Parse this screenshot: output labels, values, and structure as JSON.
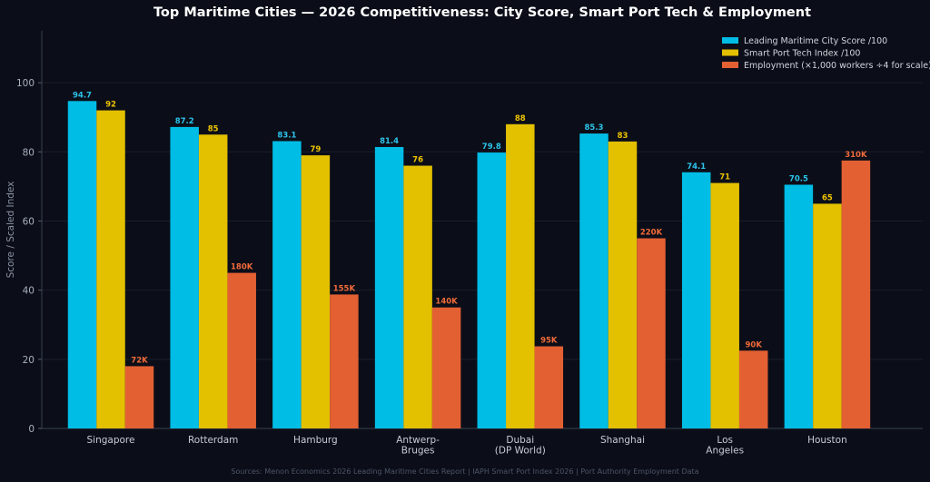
{
  "chart_data": {
    "type": "bar",
    "title": "Top Maritime Cities — 2026 Competitiveness: City Score, Smart Port Tech & Employment",
    "ylabel": "Score / Scaled Index",
    "xlabel": "",
    "ylim": [
      0,
      115
    ],
    "yticks": [
      0,
      20,
      40,
      60,
      80,
      100
    ],
    "grid": true,
    "legend_position": "top-right",
    "categories": [
      [
        "Singapore"
      ],
      [
        "Rotterdam"
      ],
      [
        "Hamburg"
      ],
      [
        "Antwerp-",
        "Bruges"
      ],
      [
        "Dubai",
        "(DP World)"
      ],
      [
        "Shanghai"
      ],
      [
        "Los",
        "Angeles"
      ],
      [
        "Houston"
      ]
    ],
    "series": [
      {
        "name": "Leading Maritime City Score /100",
        "color": "#00bde6",
        "label_color": "#2cc3ea",
        "values": [
          94.7,
          87.2,
          83.1,
          81.4,
          79.8,
          85.3,
          74.1,
          70.5
        ],
        "labels": [
          "94.7",
          "87.2",
          "83.1",
          "81.4",
          "79.8",
          "85.3",
          "74.1",
          "70.5"
        ]
      },
      {
        "name": "Smart Port Tech Index /100",
        "color": "#e3c000",
        "label_color": "#eec400",
        "values": [
          92,
          85,
          79,
          76,
          88,
          83,
          71,
          65
        ],
        "labels": [
          "92",
          "85",
          "79",
          "76",
          "88",
          "83",
          "71",
          "65"
        ]
      },
      {
        "name": "Employment (×1,000 workers ÷4 for scale)",
        "color": "#e36033",
        "label_color": "#f06a3a",
        "values": [
          18,
          45,
          38.75,
          35,
          23.75,
          55,
          22.5,
          77.5
        ],
        "labels": [
          "72K",
          "180K",
          "155K",
          "140K",
          "95K",
          "220K",
          "90K",
          "310K"
        ]
      }
    ],
    "source": "Sources: Menon Economics 2026 Leading Maritime Cities Report | IAPH Smart Port Index 2026 | Port Authority Employment Data"
  }
}
